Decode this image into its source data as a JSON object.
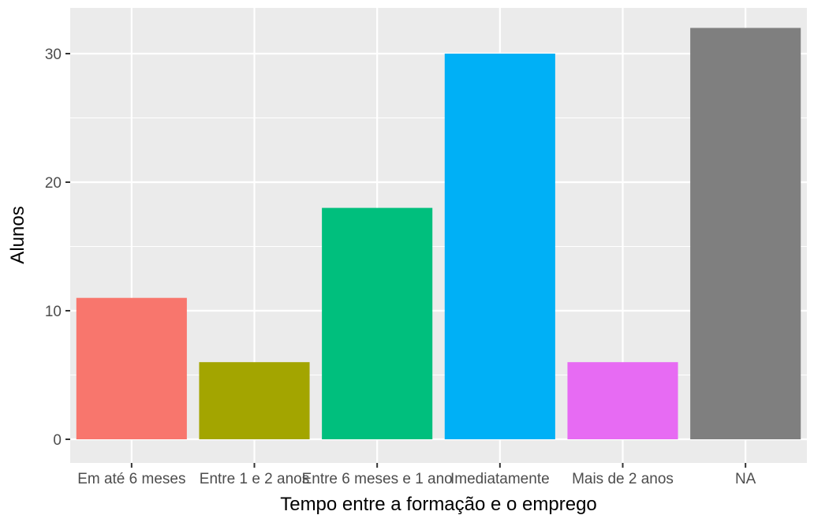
{
  "chart_data": {
    "type": "bar",
    "title": "",
    "xlabel": "Tempo entre a formação e o emprego",
    "ylabel": "Alunos",
    "categories": [
      "Em até 6 meses",
      "Entre 1 e 2 anos",
      "Entre 6 meses e 1 ano",
      "Imediatamente",
      "Mais de 2 anos",
      "NA"
    ],
    "values": [
      11,
      6,
      18,
      30,
      6,
      32
    ],
    "colors": [
      "#F8766D",
      "#A3A500",
      "#00BF7D",
      "#00B0F6",
      "#E76BF3",
      "#7F7F7F"
    ],
    "ylim": [
      0,
      33.6
    ],
    "yticks": [
      0,
      10,
      20,
      30
    ],
    "grid": true,
    "legend": "none"
  }
}
